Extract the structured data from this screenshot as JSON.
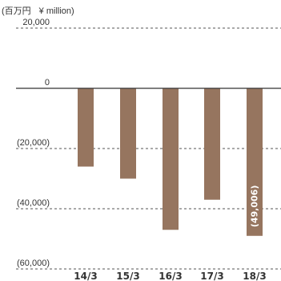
{
  "units": {
    "jp": "(百万円",
    "en": "¥ million)"
  },
  "colors": {
    "bar": "#96755f",
    "axis": "#333333",
    "grid": "#555555",
    "text": "#333333",
    "bar_label": "#ffffff"
  },
  "chart_data": {
    "type": "bar",
    "categories": [
      "14/3",
      "15/3",
      "16/3",
      "17/3",
      "18/3"
    ],
    "values": [
      -26000,
      -30000,
      -47000,
      -37000,
      -49006
    ],
    "y_ticks": [
      {
        "value": 20000,
        "label": "20,000"
      },
      {
        "value": 0,
        "label": "0"
      },
      {
        "value": -20000,
        "label": "(20,000)"
      },
      {
        "value": -40000,
        "label": "(40,000)"
      },
      {
        "value": -60000,
        "label": "(60,000)"
      }
    ],
    "ylim": [
      -60000,
      20000
    ],
    "grid": true,
    "data_labels": {
      "4": "(49,006)"
    }
  }
}
